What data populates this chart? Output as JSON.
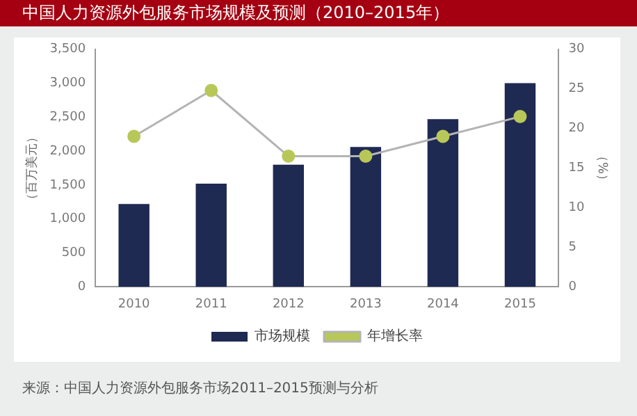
{
  "chart_data": {
    "type": "bar",
    "title": "中国人力资源外包服务市场规模及预测（2010–2015年）",
    "ylabel": "（百万美元）",
    "y2label": "（%）",
    "annotations": [
      "来源：中国人力资源外包服务市场2011–2015预测与分析"
    ],
    "categories": [
      "2010",
      "2011",
      "2012",
      "2013",
      "2014",
      "2015"
    ],
    "series": [
      {
        "name": "市场规模",
        "color": "#1f2a52",
        "values": [
          1220,
          1520,
          1800,
          2060,
          2470,
          3000
        ]
      },
      {
        "name": "年增长率",
        "type": "line",
        "axis": "y2",
        "color": "#b8c858",
        "values": [
          19,
          24.8,
          16.5,
          16.5,
          19,
          21.5
        ]
      }
    ],
    "ylim": [
      0,
      3500
    ],
    "yticks": [
      0,
      500,
      {
        "value": 1000,
        "label": "1,000"
      },
      {
        "value": 1500,
        "label": "1,500"
      },
      {
        "value": 2000,
        "label": "2,000"
      },
      {
        "value": 2500,
        "label": "2,500"
      },
      {
        "value": 3000,
        "label": "3,000"
      },
      {
        "value": 3500,
        "label": "3,500"
      }
    ],
    "y2lim": [
      0,
      30
    ],
    "y2ticks": [
      0,
      5,
      10,
      15,
      20,
      25,
      30
    ],
    "grid": false,
    "legend": "bottom",
    "marker": "circle",
    "line_style": "solid"
  }
}
